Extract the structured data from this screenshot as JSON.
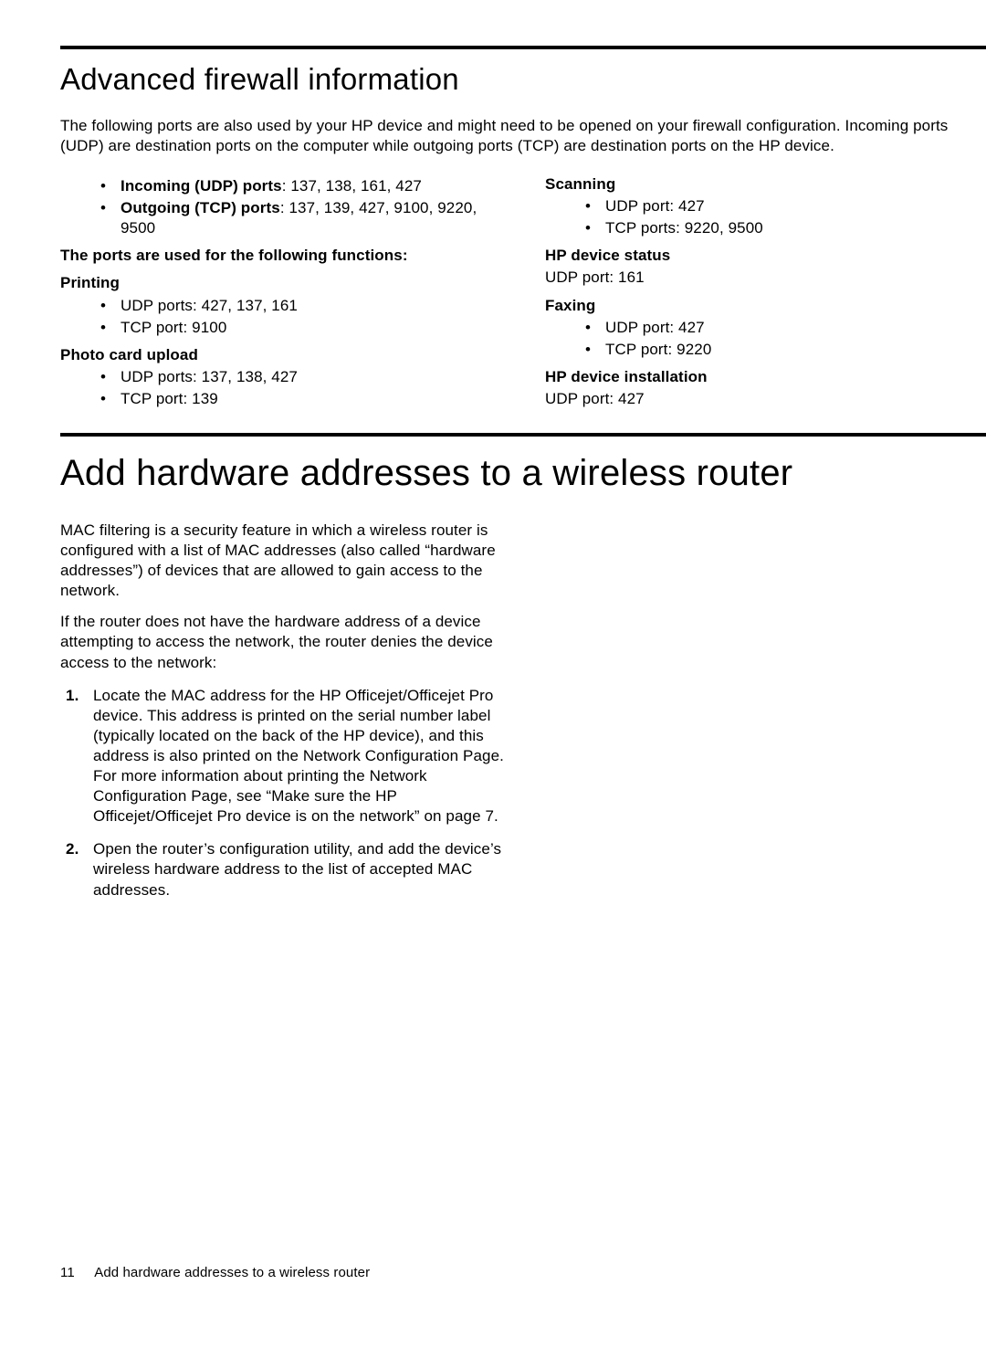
{
  "section1": {
    "title": "Advanced firewall information",
    "intro": "The following ports are also used by your HP device and might need to be opened on your firewall configuration. Incoming ports (UDP) are destination ports on the computer while outgoing ports (TCP) are destination ports on the HP device.",
    "ports_summary": {
      "incoming_label": "Incoming (UDP) ports",
      "incoming_values": ": 137, 138, 161, 427",
      "outgoing_label": "Outgoing (TCP) ports",
      "outgoing_values": ": 137, 139, 427, 9100, 9220, 9500"
    },
    "functions_heading": "The ports are used for the following functions:",
    "left": {
      "printing": {
        "title": "Printing",
        "items": [
          "UDP ports: 427, 137, 161",
          "TCP port: 9100"
        ]
      },
      "photo": {
        "title": "Photo card upload",
        "items": [
          "UDP ports: 137, 138, 427",
          "TCP port: 139"
        ]
      }
    },
    "right": {
      "scanning": {
        "title": "Scanning",
        "items": [
          "UDP port: 427",
          "TCP ports: 9220, 9500"
        ]
      },
      "status": {
        "title": "HP device status",
        "line": "UDP port: 161"
      },
      "faxing": {
        "title": "Faxing",
        "items": [
          "UDP port: 427",
          "TCP port: 9220"
        ]
      },
      "install": {
        "title": "HP device installation",
        "line": "UDP port: 427"
      }
    }
  },
  "section2": {
    "title": "Add hardware addresses to a wireless router",
    "p1": "MAC filtering is a security feature in which a wireless router is configured with a list of MAC addresses (also called “hardware addresses”) of devices that are allowed to gain access to the network.",
    "p2": "If the router does not have the hardware address of a device attempting to access the network, the router denies the device access to the network:",
    "steps": [
      "Locate the MAC address for the HP Officejet/Officejet Pro device. This address is printed on the serial number label (typically located on the back of the HP device), and this address is also printed on the Network Configuration Page. For more information about printing the Network Configuration Page, see “Make sure the HP Officejet/Officejet Pro device is on the network” on page 7.",
      "Open the router’s configuration utility, and add the device’s wireless hardware address to the list of accepted MAC addresses."
    ]
  },
  "footer": {
    "page": "11",
    "label": "Add hardware addresses to a wireless router"
  }
}
